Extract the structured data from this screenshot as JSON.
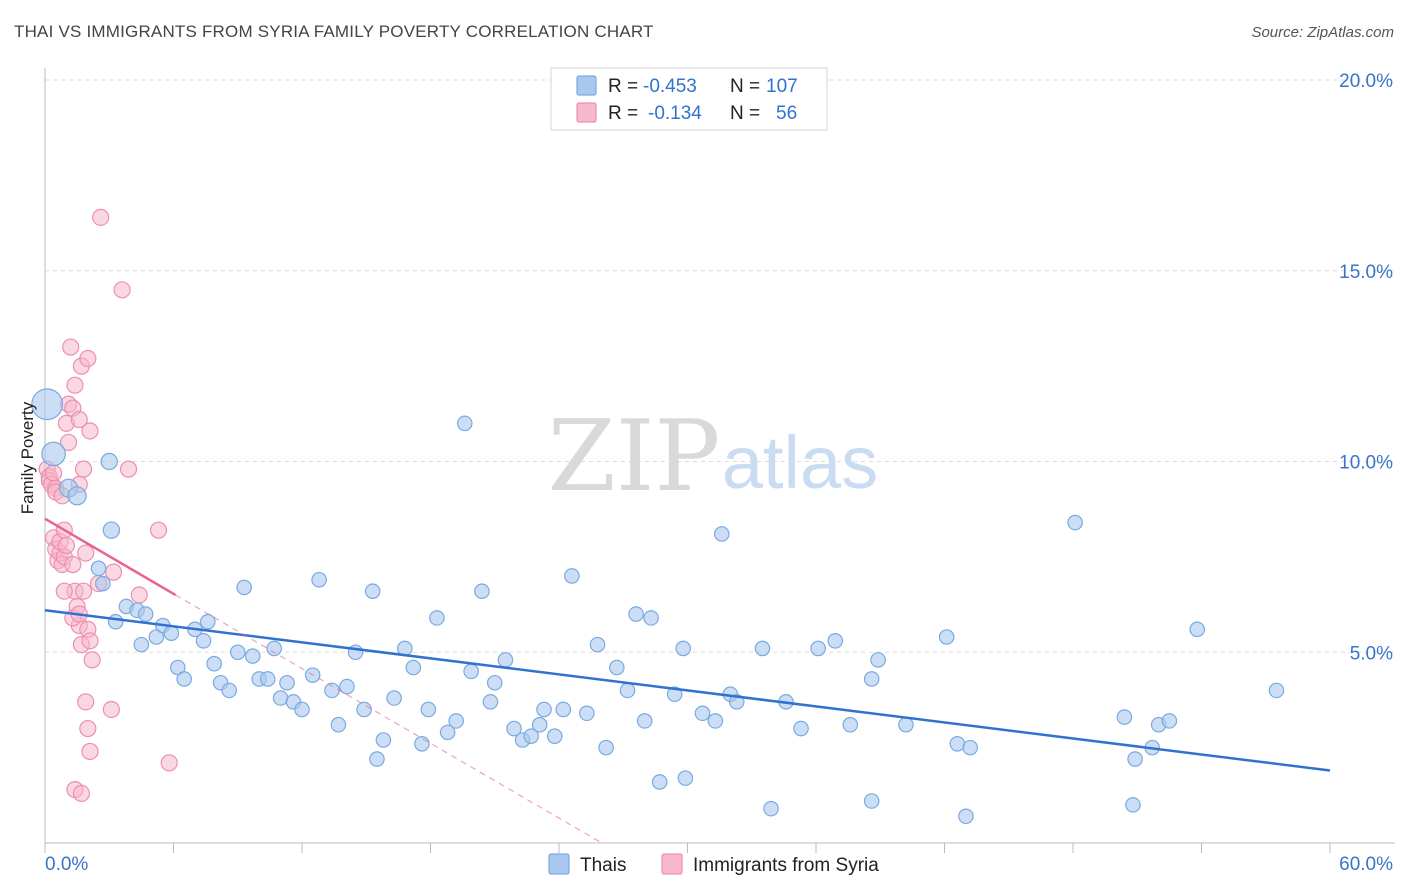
{
  "header": {
    "title": "THAI VS IMMIGRANTS FROM SYRIA FAMILY POVERTY CORRELATION CHART",
    "source": "Source: ZipAtlas.com"
  },
  "colors": {
    "thais_fill": "#a8c8ee",
    "thais_stroke": "#7aaae0",
    "thais_line": "#2f72d0",
    "syria_fill": "#f6b8cb",
    "syria_stroke": "#ee8fae",
    "syria_line": "#e8648e",
    "axis_text": "#3b74c6",
    "grid": "#dddddd"
  },
  "watermark": {
    "zip": "ZIP",
    "atlas": "atlas"
  },
  "legend": {
    "rows": [
      {
        "r_label": "R =",
        "r_value": "-0.453",
        "n_label": "N =",
        "n_value": "107"
      },
      {
        "r_label": "R =",
        "r_value": "-0.134",
        "n_label": "N =",
        "n_value": "56"
      }
    ]
  },
  "chart_data": {
    "type": "scatter",
    "title": "THAI VS IMMIGRANTS FROM SYRIA FAMILY POVERTY CORRELATION CHART",
    "xlabel": "",
    "ylabel": "Family Poverty",
    "xlim": [
      0,
      60
    ],
    "ylim": [
      0,
      20
    ],
    "x_tick_labels": [
      "0.0%",
      "60.0%"
    ],
    "y_ticks": [
      5,
      10,
      15,
      20
    ],
    "y_tick_labels": [
      "5.0%",
      "10.0%",
      "15.0%",
      "20.0%"
    ],
    "legend_bottom": [
      "Thais",
      "Immigrants from Syria"
    ],
    "series": [
      {
        "name": "Thais",
        "r": -0.453,
        "n": 107,
        "trend": {
          "x": [
            0,
            60
          ],
          "y": [
            6.1,
            1.9
          ]
        },
        "points": [
          [
            0.1,
            11.5,
            1.7
          ],
          [
            0.4,
            10.2,
            1.3
          ],
          [
            1.1,
            9.3,
            1.0
          ],
          [
            1.5,
            9.1,
            1.0
          ],
          [
            3.0,
            10.0,
            0.9
          ],
          [
            3.1,
            8.2,
            0.9
          ],
          [
            2.5,
            7.2,
            0.8
          ],
          [
            2.7,
            6.8,
            0.8
          ],
          [
            3.3,
            5.8,
            0.8
          ],
          [
            3.8,
            6.2,
            0.8
          ],
          [
            4.3,
            6.1,
            0.8
          ],
          [
            4.7,
            6.0,
            0.8
          ],
          [
            4.5,
            5.2,
            0.8
          ],
          [
            5.2,
            5.4,
            0.8
          ],
          [
            5.5,
            5.7,
            0.8
          ],
          [
            5.9,
            5.5,
            0.8
          ],
          [
            6.2,
            4.6,
            0.8
          ],
          [
            6.5,
            4.3,
            0.8
          ],
          [
            7.0,
            5.6,
            0.8
          ],
          [
            7.4,
            5.3,
            0.8
          ],
          [
            7.6,
            5.8,
            0.8
          ],
          [
            7.9,
            4.7,
            0.8
          ],
          [
            8.2,
            4.2,
            0.8
          ],
          [
            8.6,
            4.0,
            0.8
          ],
          [
            9.0,
            5.0,
            0.8
          ],
          [
            9.3,
            6.7,
            0.8
          ],
          [
            9.7,
            4.9,
            0.8
          ],
          [
            10.0,
            4.3,
            0.8
          ],
          [
            10.4,
            4.3,
            0.8
          ],
          [
            10.7,
            5.1,
            0.8
          ],
          [
            11.0,
            3.8,
            0.8
          ],
          [
            11.3,
            4.2,
            0.8
          ],
          [
            11.6,
            3.7,
            0.8
          ],
          [
            12.0,
            3.5,
            0.8
          ],
          [
            12.5,
            4.4,
            0.8
          ],
          [
            12.8,
            6.9,
            0.8
          ],
          [
            13.4,
            4.0,
            0.8
          ],
          [
            13.7,
            3.1,
            0.8
          ],
          [
            14.1,
            4.1,
            0.8
          ],
          [
            14.5,
            5.0,
            0.8
          ],
          [
            14.9,
            3.5,
            0.8
          ],
          [
            15.3,
            6.6,
            0.8
          ],
          [
            15.5,
            2.2,
            0.8
          ],
          [
            15.8,
            2.7,
            0.8
          ],
          [
            16.3,
            3.8,
            0.8
          ],
          [
            16.8,
            5.1,
            0.8
          ],
          [
            17.2,
            4.6,
            0.8
          ],
          [
            17.6,
            2.6,
            0.8
          ],
          [
            17.9,
            3.5,
            0.8
          ],
          [
            18.3,
            5.9,
            0.8
          ],
          [
            18.8,
            2.9,
            0.8
          ],
          [
            19.2,
            3.2,
            0.8
          ],
          [
            19.6,
            11.0,
            0.8
          ],
          [
            19.9,
            4.5,
            0.8
          ],
          [
            20.4,
            6.6,
            0.8
          ],
          [
            20.8,
            3.7,
            0.8
          ],
          [
            21.0,
            4.2,
            0.8
          ],
          [
            21.5,
            4.8,
            0.8
          ],
          [
            21.9,
            3.0,
            0.8
          ],
          [
            22.3,
            2.7,
            0.8
          ],
          [
            22.7,
            2.8,
            0.8
          ],
          [
            23.1,
            3.1,
            0.8
          ],
          [
            23.3,
            3.5,
            0.8
          ],
          [
            23.8,
            2.8,
            0.8
          ],
          [
            24.2,
            3.5,
            0.8
          ],
          [
            24.6,
            7.0,
            0.8
          ],
          [
            25.3,
            3.4,
            0.8
          ],
          [
            25.8,
            5.2,
            0.8
          ],
          [
            26.2,
            2.5,
            0.8
          ],
          [
            26.7,
            4.6,
            0.8
          ],
          [
            27.2,
            4.0,
            0.8
          ],
          [
            27.6,
            6.0,
            0.8
          ],
          [
            28.0,
            3.2,
            0.8
          ],
          [
            28.3,
            5.9,
            0.8
          ],
          [
            28.7,
            1.6,
            0.8
          ],
          [
            29.4,
            3.9,
            0.8
          ],
          [
            29.8,
            5.1,
            0.8
          ],
          [
            29.9,
            1.7,
            0.8
          ],
          [
            30.7,
            3.4,
            0.8
          ],
          [
            31.3,
            3.2,
            0.8
          ],
          [
            31.6,
            8.1,
            0.8
          ],
          [
            32.0,
            3.9,
            0.8
          ],
          [
            32.3,
            3.7,
            0.8
          ],
          [
            33.5,
            5.1,
            0.8
          ],
          [
            33.9,
            0.9,
            0.8
          ],
          [
            34.6,
            3.7,
            0.8
          ],
          [
            35.3,
            3.0,
            0.8
          ],
          [
            36.1,
            5.1,
            0.8
          ],
          [
            36.9,
            5.3,
            0.8
          ],
          [
            37.6,
            3.1,
            0.8
          ],
          [
            38.6,
            4.3,
            0.8
          ],
          [
            38.9,
            4.8,
            0.8
          ],
          [
            38.6,
            1.1,
            0.8
          ],
          [
            40.2,
            3.1,
            0.8
          ],
          [
            42.1,
            5.4,
            0.8
          ],
          [
            42.6,
            2.6,
            0.8
          ],
          [
            43.2,
            2.5,
            0.8
          ],
          [
            43.0,
            0.7,
            0.8
          ],
          [
            48.1,
            8.4,
            0.8
          ],
          [
            50.4,
            3.3,
            0.8
          ],
          [
            50.9,
            2.2,
            0.8
          ],
          [
            52.0,
            3.1,
            0.8
          ],
          [
            51.7,
            2.5,
            0.8
          ],
          [
            52.5,
            3.2,
            0.8
          ],
          [
            50.8,
            1.0,
            0.8
          ],
          [
            53.8,
            5.6,
            0.8
          ],
          [
            57.5,
            4.0,
            0.8
          ]
        ]
      },
      {
        "name": "Immigrants from Syria",
        "r": -0.134,
        "n": 56,
        "trend": {
          "x": [
            0,
            6.1
          ],
          "y": [
            8.5,
            6.5
          ]
        },
        "trend_extension": {
          "x": [
            6.1,
            26
          ],
          "y": [
            6.5,
            0
          ]
        },
        "points": [
          [
            0.1,
            9.8
          ],
          [
            0.2,
            9.6
          ],
          [
            0.2,
            9.5
          ],
          [
            0.3,
            9.4
          ],
          [
            0.4,
            9.7
          ],
          [
            0.5,
            9.3
          ],
          [
            0.4,
            8.0
          ],
          [
            0.5,
            7.7
          ],
          [
            0.6,
            7.4
          ],
          [
            0.7,
            7.6
          ],
          [
            0.7,
            7.9
          ],
          [
            0.8,
            7.3
          ],
          [
            0.9,
            7.5
          ],
          [
            0.9,
            8.2
          ],
          [
            1.0,
            7.8
          ],
          [
            1.0,
            11.0
          ],
          [
            1.1,
            10.5
          ],
          [
            1.1,
            11.5
          ],
          [
            1.2,
            13.0
          ],
          [
            1.3,
            11.4
          ],
          [
            1.4,
            12.0
          ],
          [
            1.6,
            11.1
          ],
          [
            1.7,
            12.5
          ],
          [
            1.8,
            9.8
          ],
          [
            2.0,
            12.7
          ],
          [
            2.1,
            10.8
          ],
          [
            2.6,
            16.4
          ],
          [
            1.3,
            7.3
          ],
          [
            1.4,
            6.6
          ],
          [
            1.5,
            6.2
          ],
          [
            1.6,
            5.7
          ],
          [
            1.7,
            5.2
          ],
          [
            1.8,
            6.6
          ],
          [
            1.9,
            7.6
          ],
          [
            2.0,
            5.6
          ],
          [
            2.1,
            5.3
          ],
          [
            2.2,
            4.8
          ],
          [
            2.5,
            6.8
          ],
          [
            1.9,
            3.7
          ],
          [
            2.0,
            3.0
          ],
          [
            2.1,
            2.4
          ],
          [
            1.4,
            1.4
          ],
          [
            1.7,
            1.3
          ],
          [
            3.1,
            3.5
          ],
          [
            3.2,
            7.1
          ],
          [
            3.6,
            14.5
          ],
          [
            3.9,
            9.8
          ],
          [
            4.4,
            6.5
          ],
          [
            5.3,
            8.2
          ],
          [
            5.8,
            2.1
          ],
          [
            0.9,
            6.6
          ],
          [
            1.3,
            5.9
          ],
          [
            1.6,
            6.0
          ],
          [
            0.5,
            9.2
          ],
          [
            1.6,
            9.4
          ],
          [
            0.8,
            9.1
          ]
        ]
      }
    ]
  }
}
